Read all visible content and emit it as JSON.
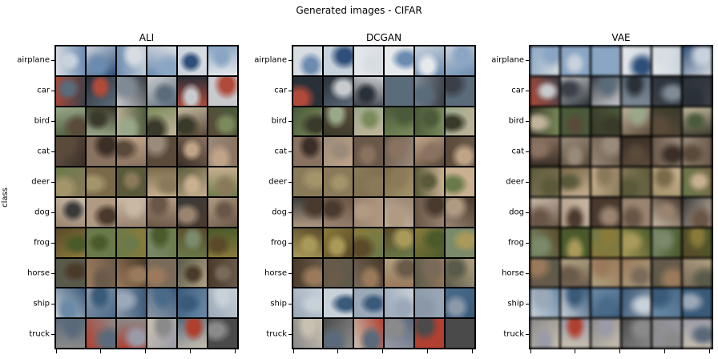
{
  "figure": {
    "title": "Generated images - CIFAR",
    "ylabel": "class"
  },
  "row_labels": [
    "airplane",
    "car",
    "bird",
    "cat",
    "deer",
    "dog",
    "frog",
    "horse",
    "ship",
    "truck"
  ],
  "panels": [
    {
      "id": "ali",
      "title": "ALI"
    },
    {
      "id": "dcgan",
      "title": "DCGAN"
    },
    {
      "id": "vae",
      "title": "VAE"
    }
  ],
  "row_palettes": {
    "airplane": [
      "#c8d2dc",
      "#8aa6c4",
      "#d8dde2",
      "#6b8bb0",
      "#e6e9ec",
      "#2f4f7a"
    ],
    "car": [
      "#5a6b7a",
      "#b04a3a",
      "#c8cacd",
      "#3b4048",
      "#7e8a96",
      "#2a3038"
    ],
    "bird": [
      "#7a8a5a",
      "#4a5a3a",
      "#c0b49a",
      "#3a3a2a",
      "#9aa88a",
      "#5a4a3a"
    ],
    "cat": [
      "#8a7260",
      "#5a4a3a",
      "#c0a488",
      "#3a2e26",
      "#9a8a7a",
      "#6a5848"
    ],
    "deer": [
      "#7a6a4a",
      "#a4946a",
      "#5a5a3a",
      "#8a7a5a",
      "#6a7a4a",
      "#c8b090"
    ],
    "dog": [
      "#9a8470",
      "#6a5646",
      "#c8b8a4",
      "#4a3a2e",
      "#b09a82",
      "#3a3a3a"
    ],
    "frog": [
      "#6a7a4a",
      "#8a7a3a",
      "#4a5a2a",
      "#aa9a5a",
      "#5a4a2a",
      "#7a8a6a"
    ],
    "horse": [
      "#6a5a4a",
      "#9a7a5a",
      "#4a3a2a",
      "#b0a080",
      "#7a6a5a",
      "#5a5a4a"
    ],
    "ship": [
      "#6a8aa8",
      "#9aa8b8",
      "#3a5a7a",
      "#c8d0d8",
      "#4a6a8a",
      "#8a98a8"
    ],
    "truck": [
      "#8a8a8a",
      "#b04030",
      "#5a6a7a",
      "#c8c0b0",
      "#4a4a4a",
      "#9a9aa8"
    ]
  }
}
